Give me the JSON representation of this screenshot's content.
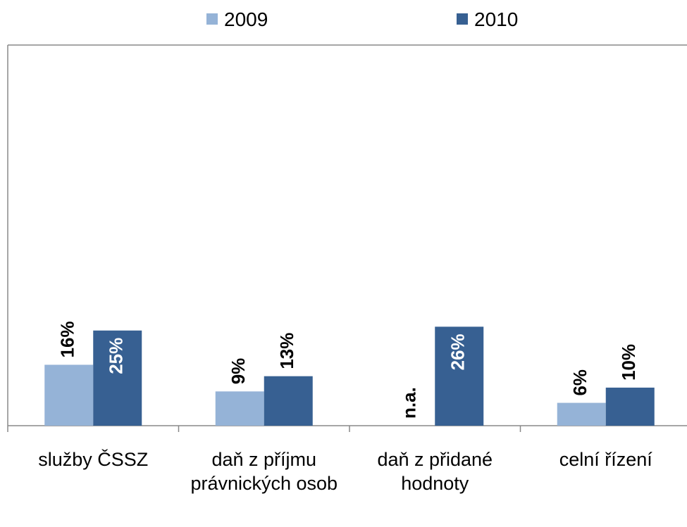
{
  "chart_data": {
    "type": "bar",
    "categories": [
      "služby ČSSZ",
      "daň z příjmu právnických osob",
      "daň z přidané hodnoty",
      "celní řízení"
    ],
    "series": [
      {
        "name": "2009",
        "color": "#95b3d7",
        "values": [
          16,
          9,
          null,
          6
        ],
        "value_labels": [
          "16%",
          "9%",
          "n.a.",
          "6%"
        ]
      },
      {
        "name": "2010",
        "color": "#376092",
        "values": [
          25,
          13,
          26,
          10
        ],
        "value_labels": [
          "25%",
          "13%",
          "26%",
          "10%"
        ]
      }
    ],
    "ylim": [
      0,
      100
    ],
    "legend": "top"
  }
}
